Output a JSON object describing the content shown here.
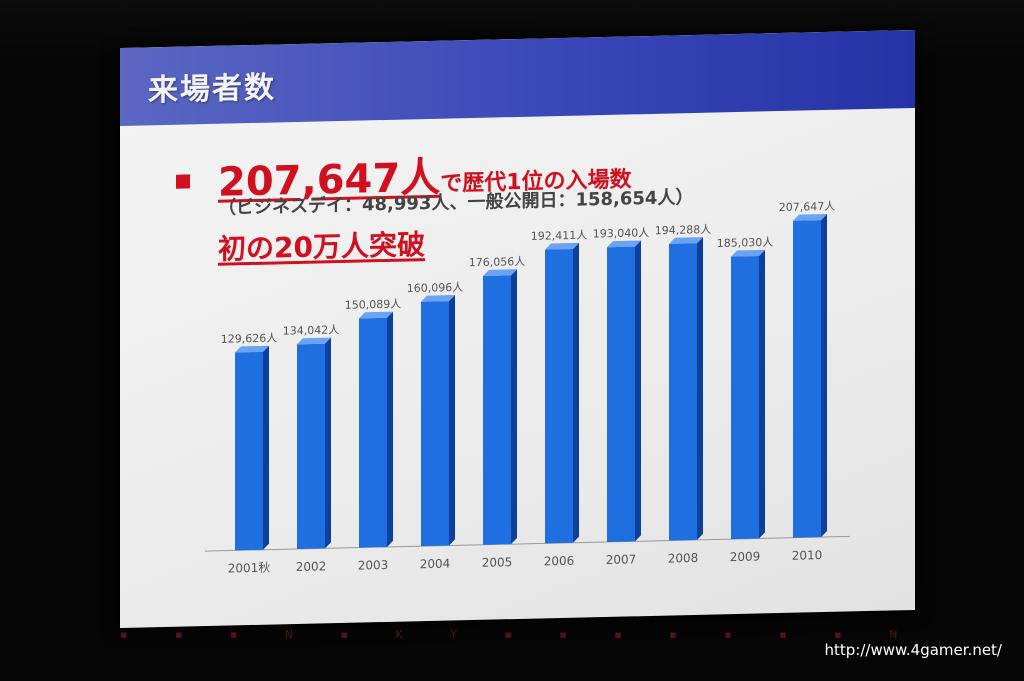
{
  "slide": {
    "title": "来場者数",
    "headline_number": "207,647人",
    "headline_text": "で歴代1位の入場数",
    "sub_text": "（ビジネスデイ：48,993人、一般公開日：158,654人）",
    "line3": "初の20万人突破"
  },
  "colors": {
    "header": "#3a47b8",
    "accent": "#d0101e",
    "bar": "#1f6fe0"
  },
  "marquee": "▪ ▪ ▪ N ▪ K Y ▪ ▪ ▪ ▪ ▪ ▪ ▪ N ▪ K Y",
  "watermark": "http://www.4gamer.net/",
  "chart_data": {
    "type": "bar",
    "categories": [
      "2001秋",
      "2002",
      "2003",
      "2004",
      "2005",
      "2006",
      "2007",
      "2008",
      "2009",
      "2010"
    ],
    "values": [
      129626,
      134042,
      150089,
      160096,
      176056,
      192411,
      193040,
      194288,
      185030,
      207647
    ],
    "data_labels": [
      "129,626人",
      "134,042人",
      "150,089人",
      "160,096人",
      "176,056人",
      "192,411人",
      "193,040人",
      "194,288人",
      "185,030人",
      "207,647人"
    ],
    "unit": "人",
    "ylim": [
      0,
      210000
    ],
    "grid": false,
    "legend": "none"
  }
}
